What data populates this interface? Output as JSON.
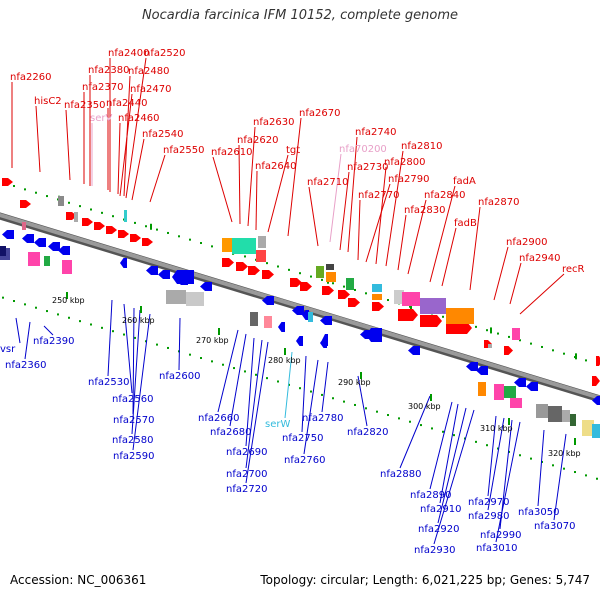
{
  "title": "Nocardia farcinica IFM 10152, complete genome",
  "footer": {
    "accession": "Accession: NC_006361",
    "topology": "Topology: circular; Length: 6,021,225 bp; Genes: 5,747"
  },
  "colors": {
    "forward_label": "#dd0000",
    "reverse_label": "#0000cc",
    "trna_forward_label": "#e8a0c8",
    "trna_reverse_label": "#33bbdd",
    "forward_gene": "#ff0000",
    "reverse_gene": "#0000ee",
    "backbone": "#808080",
    "tick": "#009900"
  },
  "scale_ticks": [
    "250 kbp",
    "260 kbp",
    "270 kbp",
    "280 kbp",
    "290 kbp",
    "300 kbp",
    "310 kbp",
    "320 kbp"
  ],
  "forward_labels": [
    "nfa2260",
    "hisC2",
    "nfa2350",
    "nfa2370",
    "nfa2380",
    "nfa2400",
    "nfa2440",
    "serV",
    "nfa2460",
    "nfa2470",
    "nfa2480",
    "nfa2520",
    "nfa2540",
    "nfa2550",
    "nfa2610",
    "nfa2620",
    "nfa2630",
    "nfa2640",
    "tgt",
    "nfa2670",
    "nfa70200",
    "nfa2710",
    "nfa2730",
    "nfa2740",
    "nfa2770",
    "nfa2790",
    "nfa2800",
    "nfa2810",
    "nfa2830",
    "nfa2840",
    "fadA",
    "fadB",
    "nfa2870",
    "nfa2900",
    "nfa2940",
    "recR"
  ],
  "reverse_labels": [
    "vsr",
    "nfa2360",
    "nfa2390",
    "nfa2530",
    "nfa2560",
    "nfa2570",
    "nfa2580",
    "nfa2590",
    "nfa2600",
    "nfa2660",
    "nfa2680",
    "nfa2690",
    "nfa2700",
    "nfa2720",
    "serW",
    "nfa2750",
    "nfa2760",
    "nfa2780",
    "nfa2820",
    "nfa2880",
    "nfa2890",
    "nfa2910",
    "nfa2920",
    "nfa2930",
    "nfa2970",
    "nfa2980",
    "nfa2990",
    "nfa3010",
    "nfa3050",
    "nfa3070"
  ]
}
